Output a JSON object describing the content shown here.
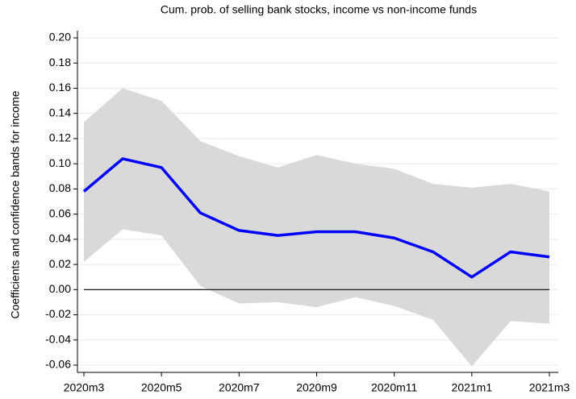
{
  "chart_data": {
    "type": "line-band",
    "title": "Cum. prob. of selling bank stocks, income vs non-income funds",
    "y_label": "Coefficients and confidence bands for income",
    "categories": [
      "2020m3",
      null,
      "2020m5",
      null,
      "2020m7",
      null,
      "2020m9",
      null,
      "2020m11",
      null,
      "2021m1",
      null,
      "2021m3"
    ],
    "series": [
      {
        "color": "#0000ff",
        "values": [
          0.078,
          0.104,
          0.097,
          0.061,
          0.047,
          0.043,
          0.046,
          0.046,
          0.041,
          0.03,
          0.01,
          0.03,
          0.026
        ]
      }
    ],
    "band": {
      "color": "#d9d9d9",
      "upper": [
        0.133,
        0.16,
        0.15,
        0.118,
        0.106,
        0.097,
        0.107,
        0.1,
        0.096,
        0.084,
        0.081,
        0.084,
        0.078
      ],
      "lower": [
        0.022,
        0.048,
        0.043,
        0.003,
        -0.011,
        -0.01,
        -0.014,
        -0.006,
        -0.013,
        -0.024,
        -0.061,
        -0.025,
        -0.027
      ]
    },
    "reference_line": 0,
    "ylim": [
      -0.06,
      0.2
    ],
    "yticks": [
      {
        "value": -0.06,
        "label": "-0.06"
      },
      {
        "value": -0.04,
        "label": "-0.04"
      },
      {
        "value": -0.02,
        "label": "-0.02"
      },
      {
        "value": 0,
        "label": "0.00"
      },
      {
        "value": 0.02,
        "label": "0.02"
      },
      {
        "value": 0.04,
        "label": "0.04"
      },
      {
        "value": 0.06,
        "label": "0.06"
      },
      {
        "value": 0.08,
        "label": "0.08"
      },
      {
        "value": 0.1,
        "label": "0.10"
      },
      {
        "value": 0.12,
        "label": "0.12"
      },
      {
        "value": 0.14,
        "label": "0.14"
      },
      {
        "value": 0.16,
        "label": "0.16"
      },
      {
        "value": 0.18,
        "label": "0.18"
      },
      {
        "value": 0.2,
        "label": "0.20"
      }
    ],
    "grid": true
  }
}
